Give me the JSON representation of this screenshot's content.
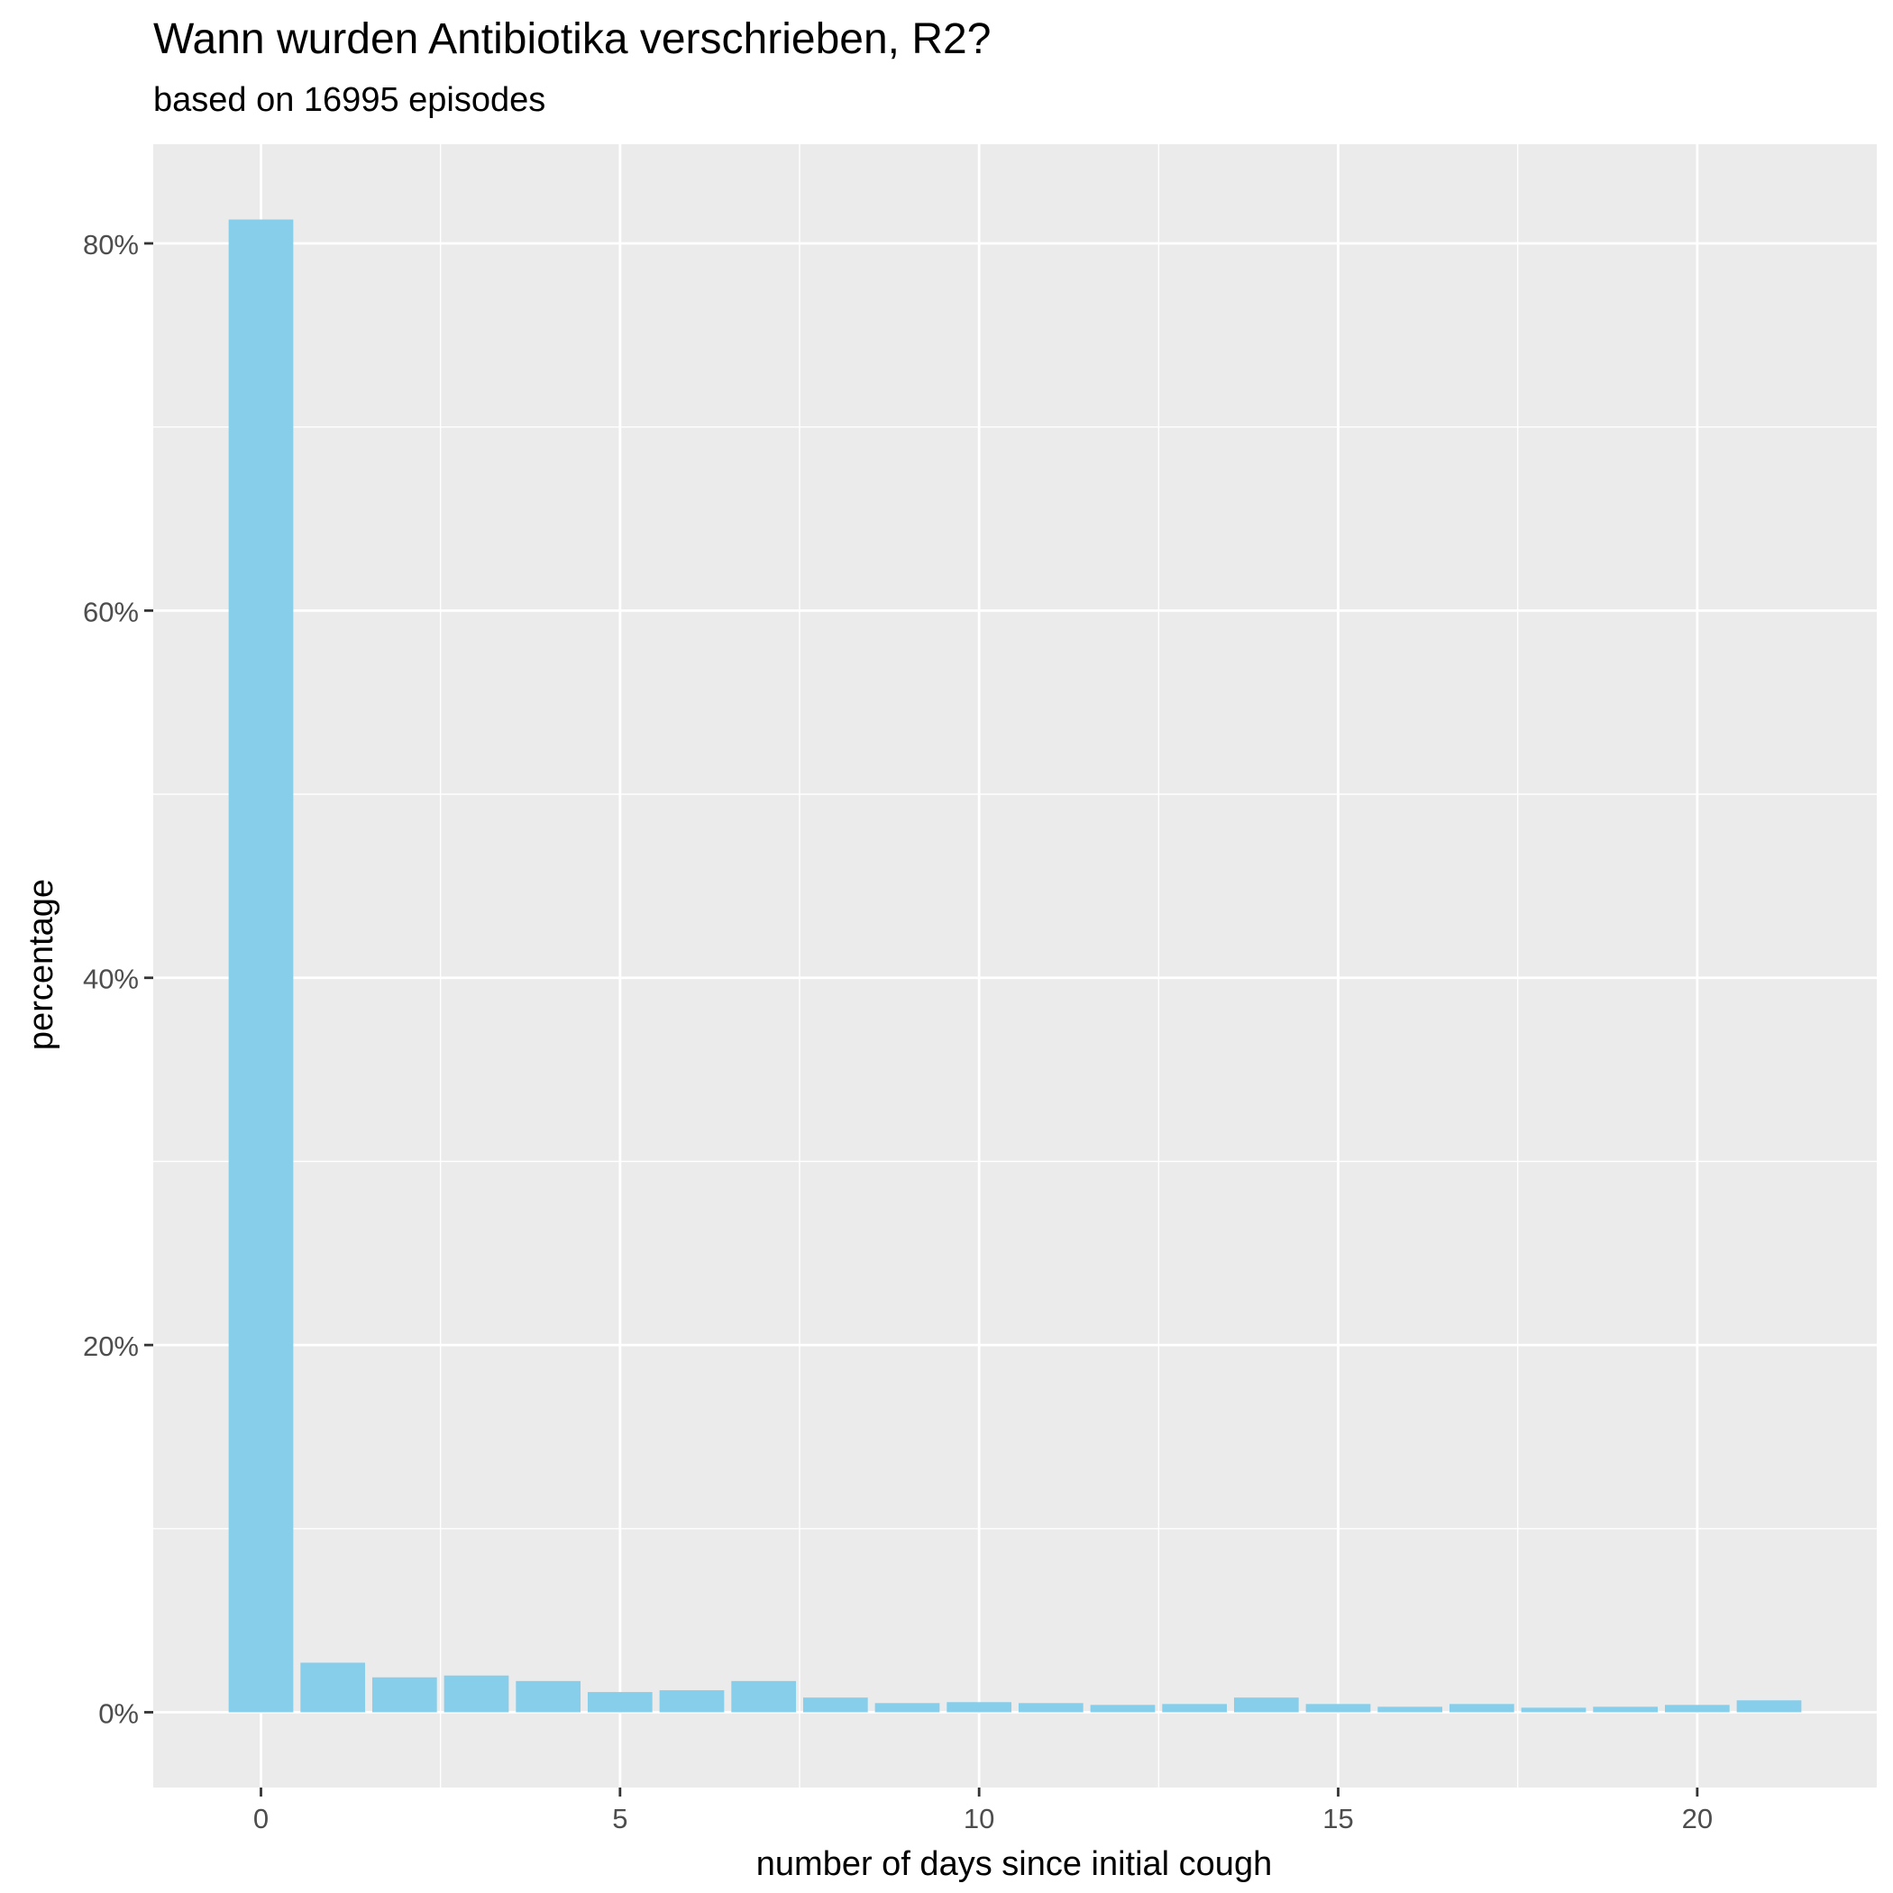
{
  "chart_data": {
    "type": "bar",
    "title": "Wann wurden Antibiotika verschrieben, R2?",
    "subtitle": "based on 16995 episodes",
    "xlabel": "number of days since initial cough",
    "ylabel": "percentage",
    "x": [
      0,
      1,
      2,
      3,
      4,
      5,
      6,
      7,
      8,
      9,
      10,
      11,
      12,
      13,
      14,
      15,
      16,
      17,
      18,
      19,
      20,
      21
    ],
    "values": [
      81.3,
      2.7,
      1.9,
      2.0,
      1.7,
      1.1,
      1.2,
      1.7,
      0.8,
      0.5,
      0.55,
      0.5,
      0.4,
      0.45,
      0.8,
      0.45,
      0.3,
      0.45,
      0.25,
      0.3,
      0.4,
      0.65
    ],
    "xlim": [
      -1.5,
      22.5
    ],
    "ylim": [
      -4.1,
      85.4
    ],
    "x_ticks": [
      0,
      5,
      10,
      15,
      20
    ],
    "x_tick_labels": [
      "0",
      "5",
      "10",
      "15",
      "20"
    ],
    "y_ticks": [
      0,
      20,
      40,
      60,
      80
    ],
    "y_tick_labels": [
      "0%",
      "20%",
      "40%",
      "60%",
      "80%"
    ],
    "grid": true,
    "colors": {
      "bar": "#87CEEB",
      "panel": "#EBEBEB",
      "grid": "#FFFFFF",
      "tick_text": "#4D4D4D",
      "tick_mark": "#333333"
    }
  }
}
